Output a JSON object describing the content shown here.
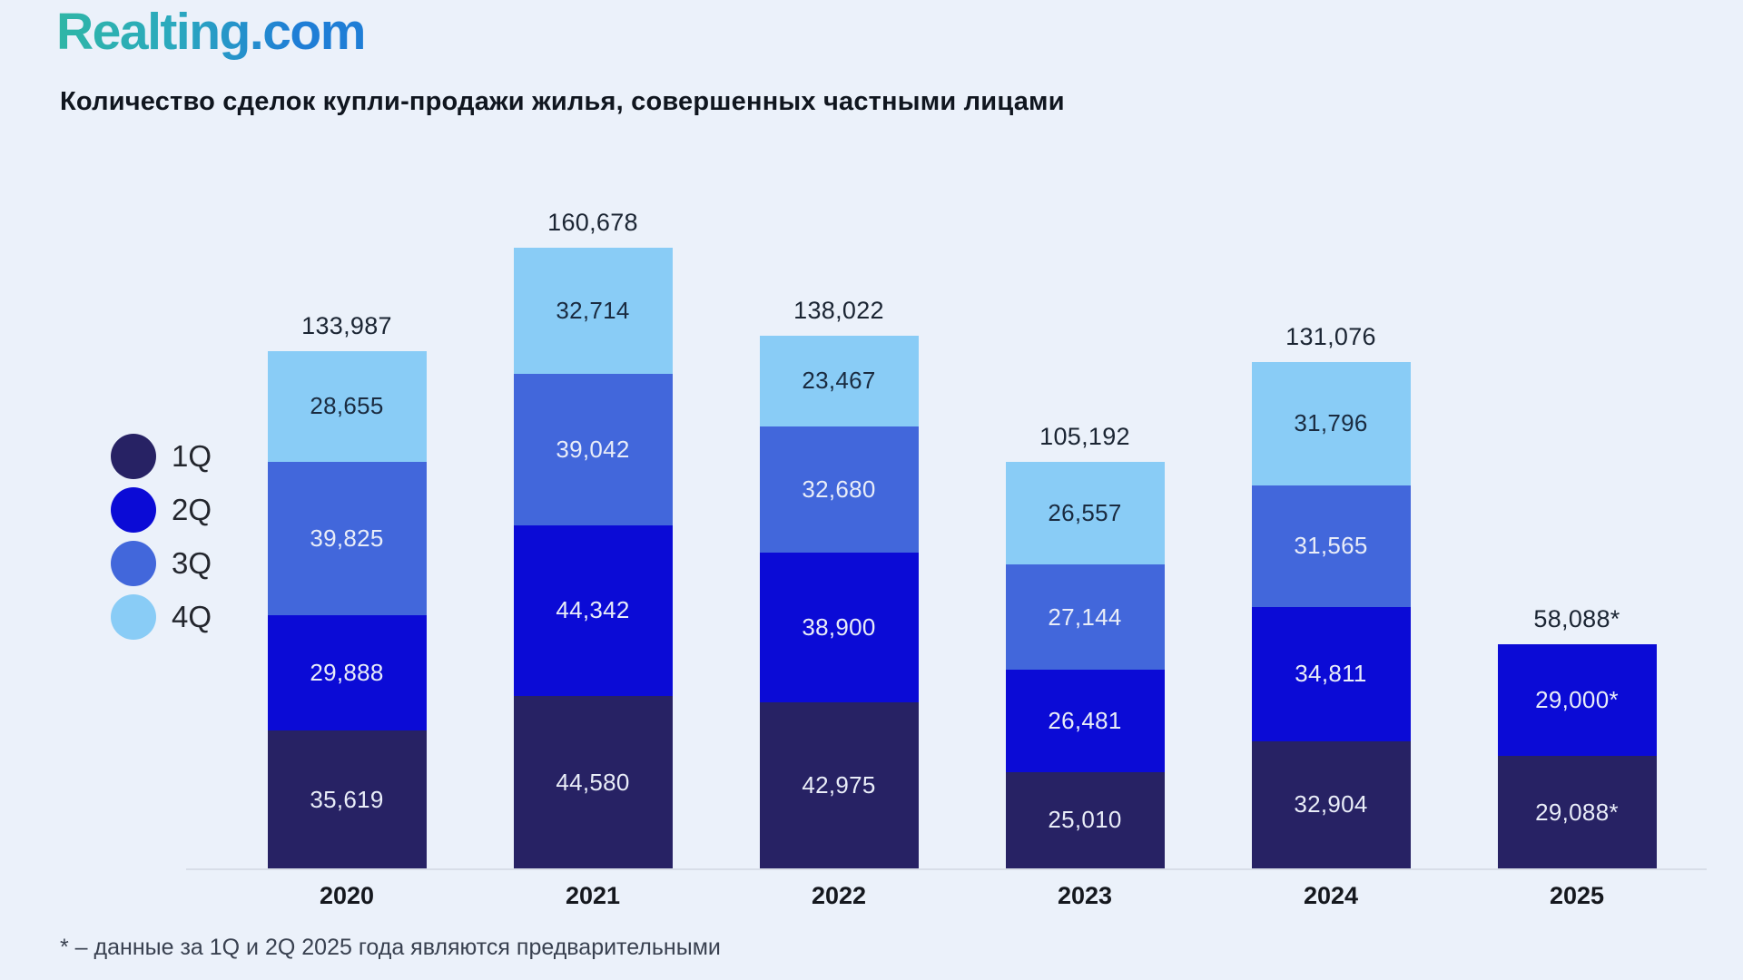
{
  "logo": {
    "text": "Realting.com",
    "gradient_start": "#2FB6A6",
    "gradient_end": "#1F7ED6"
  },
  "title": "Количество сделок купли-продажи жилья, совершенных частными лицами",
  "footnote": "* – данные за 1Q и 2Q 2025 года являются предварительными",
  "colors": {
    "background": "#EBF1FA",
    "q1": "#272264",
    "q2": "#0B0BD6",
    "q3": "#4267DB",
    "q4": "#89CCF6",
    "axis_line": "#D8DEE8",
    "label_on_dark": "#E9EDF8",
    "label_on_light": "#1A2B40",
    "total_label": "#1B2533"
  },
  "legend": [
    {
      "label": "1Q",
      "color": "#272264"
    },
    {
      "label": "2Q",
      "color": "#0B0BD6"
    },
    {
      "label": "3Q",
      "color": "#4267DB"
    },
    {
      "label": "4Q",
      "color": "#89CCF6"
    }
  ],
  "chart_data": {
    "type": "bar",
    "stacked": true,
    "title": "Количество сделок купли-продажи жилья, совершенных частными лицами",
    "categories": [
      "2020",
      "2021",
      "2022",
      "2023",
      "2024",
      "2025"
    ],
    "series": [
      {
        "name": "1Q",
        "color": "#272264",
        "values": [
          35619,
          44580,
          42975,
          25010,
          32904,
          29088
        ],
        "labels": [
          "35,619",
          "44,580",
          "42,975",
          "25,010",
          "32,904",
          "29,088*"
        ]
      },
      {
        "name": "2Q",
        "color": "#0B0BD6",
        "values": [
          29888,
          44342,
          38900,
          26481,
          34811,
          29000
        ],
        "labels": [
          "29,888",
          "44,342",
          "38,900",
          "26,481",
          "34,811",
          "29,000*"
        ]
      },
      {
        "name": "3Q",
        "color": "#4267DB",
        "values": [
          39825,
          39042,
          32680,
          27144,
          31565,
          null
        ],
        "labels": [
          "39,825",
          "39,042",
          "32,680",
          "27,144",
          "31,565",
          null
        ]
      },
      {
        "name": "4Q",
        "color": "#89CCF6",
        "values": [
          28655,
          32714,
          23467,
          26557,
          31796,
          null
        ],
        "labels": [
          "28,655",
          "32,714",
          "23,467",
          "26,557",
          "31,796",
          null
        ]
      }
    ],
    "totals": [
      133987,
      160678,
      138022,
      105192,
      131076,
      58088
    ],
    "total_labels": [
      "133,987",
      "160,678",
      "138,022",
      "105,192",
      "131,076",
      "58,088*"
    ],
    "xlabel": "",
    "ylabel": "",
    "value_axis_hidden": true,
    "grid": false,
    "legend_position": "left"
  }
}
